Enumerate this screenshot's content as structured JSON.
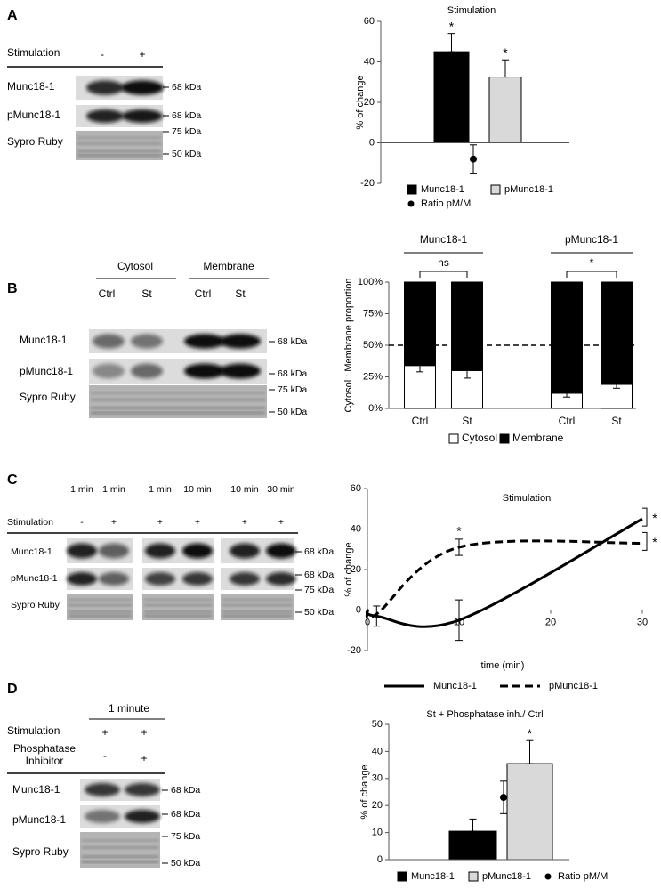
{
  "blots": [
    {
      "panel": "A",
      "conditions": [
        {
          "name": "Stimulation",
          "lanes": [
            "-",
            "+"
          ]
        }
      ],
      "rows": [
        {
          "name": "Munc18-1",
          "markers": [
            "68 kDa"
          ]
        },
        {
          "name": "pMunc18-1",
          "markers": [
            "68 kDa"
          ]
        },
        {
          "name": "Sypro Ruby",
          "markers": [
            "75 kDa",
            "50 kDa"
          ]
        }
      ]
    },
    {
      "panel": "B",
      "groups": [
        "Cytosol",
        "Membrane"
      ],
      "lanes": [
        "Ctrl",
        "St",
        "Ctrl",
        "St"
      ],
      "rows": [
        {
          "name": "Munc18-1",
          "markers": [
            "68 kDa"
          ]
        },
        {
          "name": "pMunc18-1",
          "markers": [
            "68 kDa"
          ]
        },
        {
          "name": "Sypro Ruby",
          "markers": [
            "75 kDa",
            "50 kDa"
          ]
        }
      ]
    },
    {
      "panel": "C",
      "times": [
        "1 min",
        "1 min",
        "1 min",
        "10 min",
        "10 min",
        "30 min"
      ],
      "conditions": [
        {
          "name": "Stimulation",
          "lanes": [
            "-",
            "+",
            "+",
            "+",
            "+",
            "+"
          ]
        }
      ],
      "rows": [
        {
          "name": "Munc18-1",
          "markers": [
            "68 kDa"
          ]
        },
        {
          "name": "pMunc18-1",
          "markers": [
            "68 kDa"
          ]
        },
        {
          "name": "Sypro Ruby",
          "markers": [
            "75 kDa",
            "50 kDa"
          ]
        }
      ]
    },
    {
      "panel": "D",
      "header": "1 minute",
      "conditions": [
        {
          "name": "Stimulation",
          "lanes": [
            "+",
            "+"
          ]
        },
        {
          "name": "Phosphatase Inhibitor",
          "lanes": [
            "-",
            "+"
          ]
        }
      ],
      "rows": [
        {
          "name": "Munc18-1",
          "markers": [
            "68 kDa"
          ]
        },
        {
          "name": "pMunc18-1",
          "markers": [
            "68 kDa"
          ]
        },
        {
          "name": "Sypro Ruby",
          "markers": [
            "75 kDa",
            "50 kDa"
          ]
        }
      ]
    }
  ],
  "chart_data": [
    {
      "type": "bar",
      "title": "Stimulation",
      "y_label": "% of change",
      "ylim": [
        -20,
        60
      ],
      "yticks": [
        -20,
        0,
        20,
        40,
        60
      ],
      "legend": "bottom",
      "series": [
        {
          "name": "Munc18-1",
          "color": "#000000",
          "values": [
            45
          ],
          "errors": [
            9
          ],
          "significance": "*"
        },
        {
          "name": "pMunc18-1",
          "color": "#d9d9d9",
          "values": [
            32.5
          ],
          "errors": [
            8.5
          ],
          "significance": "*"
        },
        {
          "name": "Ratio pM/M",
          "color": "#000000",
          "marker": "dot",
          "values": [
            -8
          ],
          "errors": [
            7
          ]
        }
      ]
    },
    {
      "type": "stacked_bar",
      "y_label": "Cytosol : Membrane proportion",
      "categories": [
        "Ctrl",
        "St",
        "Ctrl",
        "St"
      ],
      "groups": [
        {
          "name": "Munc18-1",
          "comparison": "ns"
        },
        {
          "name": "pMunc18-1",
          "comparison": "*"
        }
      ],
      "ylim": [
        0,
        100
      ],
      "yticks": [
        {
          "value": 0,
          "label": "0%"
        },
        {
          "value": 25,
          "label": "25%"
        },
        {
          "value": 50,
          "label": "50%"
        },
        {
          "value": 75,
          "label": "75%"
        },
        {
          "value": 100,
          "label": "100%"
        }
      ],
      "reference_line": 50,
      "legend": "bottom",
      "series": [
        {
          "name": "Cytosol",
          "color": "#ffffff",
          "values": [
            34,
            30,
            12,
            19
          ],
          "errors": [
            5,
            6,
            3,
            3
          ]
        },
        {
          "name": "Membrane",
          "color": "#000000",
          "values": [
            66,
            70,
            88,
            81
          ]
        }
      ]
    },
    {
      "type": "line",
      "title": "Stimulation",
      "x_label": "time (min)",
      "y_label": "% of change",
      "x": [
        0,
        1,
        10,
        30
      ],
      "xlim": [
        0,
        30
      ],
      "xticks": [
        0,
        10,
        20,
        30
      ],
      "ylim": [
        -20,
        60
      ],
      "yticks": [
        -20,
        0,
        20,
        40,
        60
      ],
      "legend": "bottom",
      "series": [
        {
          "name": "Munc18-1",
          "color": "#000000",
          "values": [
            0,
            -3,
            -5,
            45
          ],
          "errors": [
            null,
            5,
            10,
            null
          ],
          "significance": [
            null,
            null,
            null,
            "*"
          ]
        },
        {
          "name": "pMunc18-1",
          "color": "#000000",
          "dash": true,
          "values": [
            0,
            -2,
            31,
            33
          ],
          "errors": [
            null,
            null,
            4,
            null
          ],
          "significance": [
            null,
            null,
            "*",
            "*"
          ]
        }
      ]
    },
    {
      "type": "bar",
      "title": "St + Phosphatase inh./ Ctrl",
      "y_label": "% of change",
      "ylim": [
        0,
        50
      ],
      "yticks": [
        0,
        10,
        20,
        30,
        40,
        50
      ],
      "legend": "bottom",
      "series": [
        {
          "name": "Munc18-1",
          "color": "#000000",
          "values": [
            10.5
          ],
          "errors": [
            4.5
          ]
        },
        {
          "name": "pMunc18-1",
          "color": "#d9d9d9",
          "values": [
            35.5
          ],
          "errors": [
            8.5
          ],
          "significance": "*"
        },
        {
          "name": "Ratio pM/M",
          "color": "#000000",
          "marker": "dot",
          "values": [
            23
          ],
          "errors": [
            6
          ]
        }
      ]
    }
  ]
}
